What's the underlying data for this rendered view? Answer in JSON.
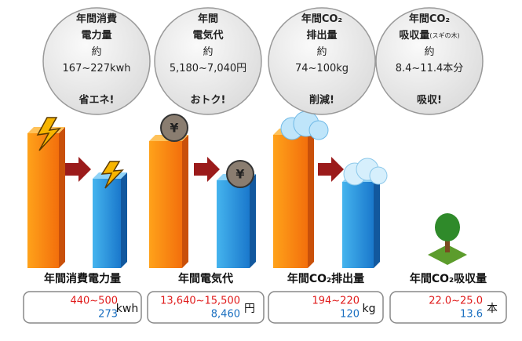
{
  "bubbles": [
    {
      "lines": [
        "年間消費",
        "電力量",
        "約",
        "167~227kwh"
      ],
      "note": null,
      "tagline": "省エネ!"
    },
    {
      "lines": [
        "年間",
        "電気代",
        "約",
        "5,180~7,040円"
      ],
      "note": null,
      "tagline": "おトク!"
    },
    {
      "lines": [
        "年間CO₂",
        "排出量",
        "約",
        "74~100kg"
      ],
      "note": null,
      "tagline": "削減!"
    },
    {
      "lines": [
        "年間CO₂",
        "吸収量",
        "約",
        "8.4~11.4本分"
      ],
      "note": "(スギの木)",
      "tagline": "吸収!"
    }
  ],
  "panels": [
    {
      "label": "年間消費電力量",
      "before": "440~500",
      "after": "273",
      "unit": "kwh"
    },
    {
      "label": "年間電気代",
      "before": "13,640~15,500",
      "after": "8,460",
      "unit": "円"
    },
    {
      "label": "年間CO₂排出量",
      "before": "194~220",
      "after": "120",
      "unit": "kg"
    },
    {
      "label": "年間CO₂吸収量",
      "before": "22.0~25.0",
      "after": "13.6",
      "unit": "本"
    }
  ]
}
